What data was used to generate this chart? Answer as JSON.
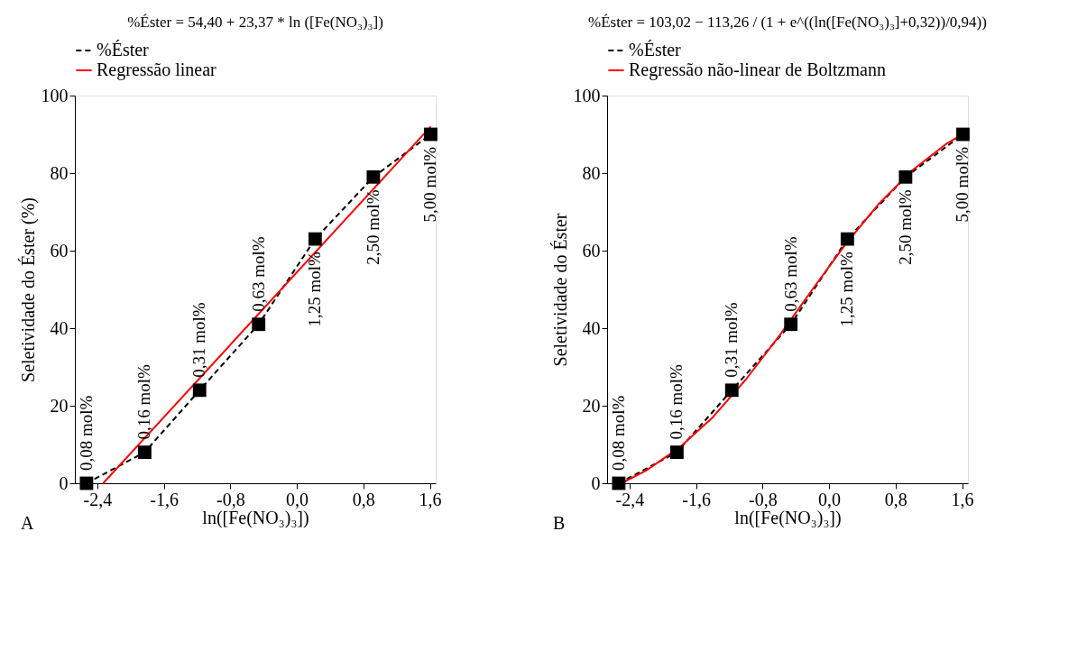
{
  "chart_data": [
    {
      "type": "line",
      "title": "%Éster = 54,40 + 23,37 * ln ([Fe(NO₃)₃])",
      "xlabel": "ln([Fe(NO₃)₃])",
      "ylabel": "Seletividade do Éster (%)",
      "legend": "top",
      "grid": false,
      "xlim": [
        -2.67,
        1.67
      ],
      "ylim": [
        0,
        100
      ],
      "xticks": [
        {
          "value": -2.4,
          "label": "-2,4"
        },
        {
          "value": -1.6,
          "label": "-1,6"
        },
        {
          "value": -0.8,
          "label": "-0,8"
        },
        {
          "value": 0.0,
          "label": "0,0"
        },
        {
          "value": 0.8,
          "label": "0,8"
        },
        {
          "value": 1.6,
          "label": "1,6"
        }
      ],
      "yticks": [
        0,
        20,
        40,
        60,
        80,
        100
      ],
      "series": [
        {
          "name": "%Éster",
          "color": "#000000",
          "marker": "square",
          "line_style": "dashed",
          "x": [
            -2.53,
            -1.83,
            -1.17,
            -0.46,
            0.22,
            0.92,
            1.61
          ],
          "values": [
            0,
            8,
            24,
            41,
            63,
            79,
            90
          ]
        },
        {
          "name": "Regressão linear",
          "color": "#ff0000",
          "marker": "none",
          "line_style": "solid",
          "x": [
            -2.33,
            1.61
          ],
          "values": [
            0,
            92
          ]
        }
      ],
      "annotations": [
        "0,08 mol%",
        "0,16 mol%",
        "0,31 mol%",
        "0,63 mol%",
        "1,25 mol%",
        "2,50 mol%",
        "5,00 mol%",
        "A"
      ]
    },
    {
      "type": "line",
      "title": "%Éster = 103,02 − 113,26 / (1 + e^((ln([Fe(NO₃)₃]+0,32))/0,94))",
      "xlabel": "ln([Fe(NO₃)₃])",
      "ylabel": "Seletividade do Éster",
      "legend": "top",
      "grid": false,
      "xlim": [
        -2.67,
        1.67
      ],
      "ylim": [
        0,
        100
      ],
      "xticks": [
        {
          "value": -2.4,
          "label": "-2,4"
        },
        {
          "value": -1.6,
          "label": "-1,6"
        },
        {
          "value": -0.8,
          "label": "-0,8"
        },
        {
          "value": 0.0,
          "label": "0,0"
        },
        {
          "value": 0.8,
          "label": "0,8"
        },
        {
          "value": 1.6,
          "label": "1,6"
        }
      ],
      "yticks": [
        0,
        20,
        40,
        60,
        80,
        100
      ],
      "series": [
        {
          "name": "%Éster",
          "color": "#000000",
          "marker": "square",
          "line_style": "dashed",
          "x": [
            -2.53,
            -1.83,
            -1.17,
            -0.46,
            0.22,
            0.92,
            1.61
          ],
          "values": [
            0,
            8,
            24,
            41,
            63,
            79,
            90
          ]
        },
        {
          "name": "Regressão não-linear de Boltzmann",
          "color": "#ff0000",
          "marker": "none",
          "line_style": "solid",
          "x": [
            -2.5,
            -2.2,
            -1.8,
            -1.4,
            -1.0,
            -0.6,
            -0.2,
            0.2,
            0.6,
            1.0,
            1.4,
            1.61
          ],
          "values": [
            0,
            3.3,
            9.2,
            17,
            26.8,
            38,
            50,
            61.7,
            72.1,
            80.7,
            87.4,
            90.1
          ]
        }
      ],
      "annotations": [
        "0,08 mol%",
        "0,16 mol%",
        "0,31 mol%",
        "0,63 mol%",
        "1,25 mol%",
        "2,50 mol%",
        "5,00 mol%",
        "B"
      ]
    }
  ]
}
